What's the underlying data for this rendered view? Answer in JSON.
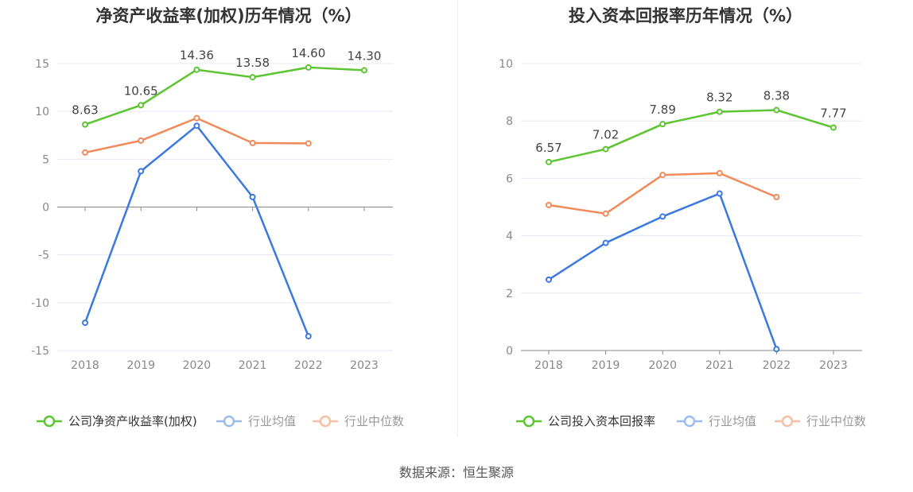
{
  "source": "数据来源：恒生聚源",
  "chart_data": [
    {
      "type": "line",
      "title": "净资产收益率(加权)历年情况（%）",
      "categories": [
        "2018",
        "2019",
        "2020",
        "2021",
        "2022",
        "2023"
      ],
      "ylim": [
        -15,
        15
      ],
      "yticks": [
        -15,
        -10,
        -5,
        0,
        5,
        10,
        15
      ],
      "grid": true,
      "legend_position": "bottom",
      "series": [
        {
          "name": "公司净资产收益率(加权)",
          "color": "#5cc531",
          "values": [
            8.63,
            10.65,
            14.36,
            13.58,
            14.6,
            14.3
          ],
          "labels": [
            "8.63",
            "10.65",
            "14.36",
            "13.58",
            "14.60",
            "14.30"
          ]
        },
        {
          "name": "行业均值",
          "color": "#3b78e0",
          "values": [
            -12.1,
            3.75,
            8.5,
            1.05,
            -13.5,
            null
          ]
        },
        {
          "name": "行业中位数",
          "color": "#f08a5a",
          "values": [
            5.7,
            6.95,
            9.3,
            6.7,
            6.65,
            null
          ]
        }
      ]
    },
    {
      "type": "line",
      "title": "投入资本回报率历年情况（%）",
      "categories": [
        "2018",
        "2019",
        "2020",
        "2021",
        "2022",
        "2023"
      ],
      "ylim": [
        0,
        10
      ],
      "yticks": [
        0,
        2,
        4,
        6,
        8,
        10
      ],
      "grid": true,
      "legend_position": "bottom",
      "series": [
        {
          "name": "公司投入资本回报率",
          "color": "#5cc531",
          "values": [
            6.57,
            7.02,
            7.89,
            8.32,
            8.38,
            7.77
          ],
          "labels": [
            "6.57",
            "7.02",
            "7.89",
            "8.32",
            "8.38",
            "7.77"
          ]
        },
        {
          "name": "行业均值",
          "color": "#3b78e0",
          "values": [
            2.47,
            3.75,
            4.67,
            5.47,
            0.05,
            null
          ]
        },
        {
          "name": "行业中位数",
          "color": "#f08a5a",
          "values": [
            5.07,
            4.77,
            6.12,
            6.18,
            5.35,
            null
          ]
        }
      ]
    }
  ]
}
